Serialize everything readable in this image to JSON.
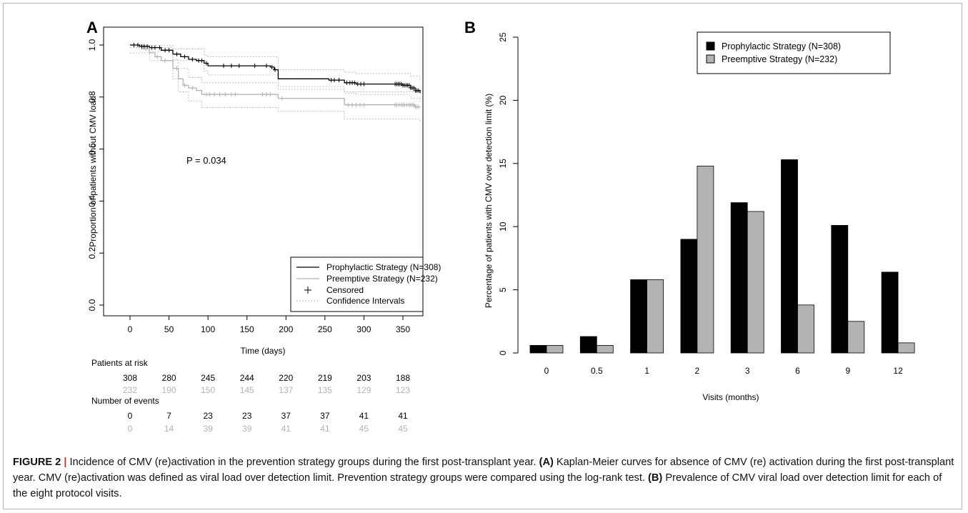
{
  "panel_a_letter": "A",
  "panel_b_letter": "B",
  "caption": {
    "fig_label": "FIGURE 2",
    "separator": "|",
    "intro": " Incidence of CMV (re)activation in the prevention strategy groups during the first post-transplant year. ",
    "a_label": "(A)",
    "a_text": " Kaplan-Meier curves for absence of CMV (re) activation during the first post-transplant year. CMV (re)activation was defined as viral load over detection limit. Prevention strategy groups were compared using the log-rank test. ",
    "b_label": "(B)",
    "b_text": " Prevalence of CMV viral load over detection limit for each of the eight protocol visits."
  },
  "colors": {
    "prophylactic": "#000000",
    "preemptive": "#b3b3b3",
    "ci": "#b8b8b8"
  },
  "chart_data": [
    {
      "type": "line",
      "panel": "A",
      "xlabel": "Time (days)",
      "ylabel": "Proportion of patients without CMV load",
      "xlim": [
        0,
        370
      ],
      "ylim": [
        0,
        1
      ],
      "x_ticks": [
        0,
        50,
        100,
        150,
        200,
        250,
        300,
        350
      ],
      "y_ticks": [
        "0.0",
        "0.2",
        "0.4",
        "0.6",
        "0.8",
        "1.0"
      ],
      "annotation": "P =  0.034",
      "legend": {
        "position": "bottom-right",
        "entries": [
          "Prophylactic Strategy (N=308)",
          "Preemptive Strategy (N=232)",
          "Censored",
          "Confidence Intervals"
        ]
      },
      "series": [
        {
          "name": "Prophylactic Strategy (N=308)",
          "steps": [
            [
              0,
              1.0
            ],
            [
              12,
              0.995
            ],
            [
              25,
              0.99
            ],
            [
              40,
              0.98
            ],
            [
              55,
              0.965
            ],
            [
              65,
              0.955
            ],
            [
              75,
              0.945
            ],
            [
              85,
              0.94
            ],
            [
              95,
              0.93
            ],
            [
              100,
              0.92
            ],
            [
              180,
              0.915
            ],
            [
              185,
              0.905
            ],
            [
              190,
              0.87
            ],
            [
              255,
              0.865
            ],
            [
              275,
              0.855
            ],
            [
              290,
              0.85
            ],
            [
              350,
              0.845
            ],
            [
              360,
              0.835
            ],
            [
              366,
              0.825
            ],
            [
              372,
              0.815
            ]
          ],
          "censored": [
            5,
            10,
            15,
            18,
            22,
            28,
            32,
            38,
            45,
            50,
            60,
            70,
            80,
            88,
            92,
            98,
            120,
            130,
            140,
            160,
            175,
            182,
            186,
            258,
            262,
            268,
            278,
            282,
            285,
            288,
            292,
            296,
            300,
            340,
            342,
            344,
            346,
            348,
            350,
            352,
            354,
            356,
            358,
            360,
            362,
            364,
            366,
            368,
            370
          ]
        },
        {
          "name": "Preemptive Strategy (N=232)",
          "steps": [
            [
              0,
              1.0
            ],
            [
              15,
              0.985
            ],
            [
              25,
              0.97
            ],
            [
              32,
              0.955
            ],
            [
              40,
              0.94
            ],
            [
              55,
              0.91
            ],
            [
              62,
              0.87
            ],
            [
              68,
              0.845
            ],
            [
              75,
              0.835
            ],
            [
              85,
              0.825
            ],
            [
              92,
              0.81
            ],
            [
              190,
              0.795
            ],
            [
              275,
              0.77
            ],
            [
              365,
              0.762
            ]
          ],
          "censored": [
            20,
            35,
            45,
            60,
            70,
            80,
            98,
            102,
            108,
            115,
            122,
            130,
            135,
            170,
            175,
            180,
            195,
            280,
            285,
            290,
            295,
            300,
            340,
            342,
            345,
            348,
            350,
            352,
            355,
            358,
            360,
            362,
            364,
            366,
            368,
            370
          ]
        },
        {
          "name": "Prophylactic upper CI",
          "steps": [
            [
              0,
              1.0
            ],
            [
              25,
              0.998
            ],
            [
              55,
              0.985
            ],
            [
              95,
              0.96
            ],
            [
              100,
              0.955
            ],
            [
              190,
              0.905
            ],
            [
              275,
              0.895
            ],
            [
              290,
              0.89
            ],
            [
              360,
              0.88
            ],
            [
              372,
              0.865
            ]
          ]
        },
        {
          "name": "Prophylactic lower CI",
          "steps": [
            [
              0,
              0.99
            ],
            [
              25,
              0.975
            ],
            [
              55,
              0.94
            ],
            [
              95,
              0.9
            ],
            [
              100,
              0.885
            ],
            [
              190,
              0.83
            ],
            [
              275,
              0.815
            ],
            [
              290,
              0.81
            ],
            [
              360,
              0.795
            ],
            [
              372,
              0.78
            ]
          ]
        },
        {
          "name": "Preemptive upper CI",
          "steps": [
            [
              0,
              1.0
            ],
            [
              25,
              0.99
            ],
            [
              55,
              0.945
            ],
            [
              62,
              0.91
            ],
            [
              75,
              0.875
            ],
            [
              92,
              0.855
            ],
            [
              190,
              0.84
            ],
            [
              275,
              0.82
            ],
            [
              372,
              0.815
            ]
          ]
        },
        {
          "name": "Preemptive lower CI",
          "steps": [
            [
              0,
              0.97
            ],
            [
              25,
              0.94
            ],
            [
              55,
              0.87
            ],
            [
              62,
              0.82
            ],
            [
              75,
              0.785
            ],
            [
              92,
              0.76
            ],
            [
              190,
              0.745
            ],
            [
              275,
              0.715
            ],
            [
              372,
              0.705
            ]
          ]
        }
      ],
      "risk_table": {
        "title": "Patients at risk",
        "prophylactic": [
          "308",
          "280",
          "245",
          "244",
          "220",
          "219",
          "203",
          "188"
        ],
        "preemptive": [
          "232",
          "190",
          "150",
          "145",
          "137",
          "135",
          "129",
          "123"
        ]
      },
      "events_table": {
        "title": "Number of events",
        "prophylactic": [
          "0",
          "7",
          "23",
          "23",
          "37",
          "37",
          "41",
          "41"
        ],
        "preemptive": [
          "0",
          "14",
          "39",
          "39",
          "41",
          "41",
          "45",
          "45"
        ]
      }
    },
    {
      "type": "bar",
      "panel": "B",
      "xlabel": "Visits (months)",
      "ylabel": "Percentage of patients with CMV over detection limit (%)",
      "categories": [
        "0",
        "0.5",
        "1",
        "2",
        "3",
        "6",
        "9",
        "12"
      ],
      "ylim": [
        0,
        25
      ],
      "y_ticks": [
        "0",
        "5",
        "10",
        "15",
        "20",
        "25"
      ],
      "legend": {
        "position": "top-right"
      },
      "series": [
        {
          "name": "Prophylactic Strategy (N=308)",
          "values": [
            0.6,
            1.3,
            5.8,
            9.0,
            11.9,
            15.3,
            10.1,
            6.4
          ]
        },
        {
          "name": "Preemptive Strategy (N=232)",
          "values": [
            0.6,
            0.6,
            5.8,
            14.8,
            11.2,
            3.8,
            2.5,
            0.8
          ]
        }
      ]
    }
  ]
}
